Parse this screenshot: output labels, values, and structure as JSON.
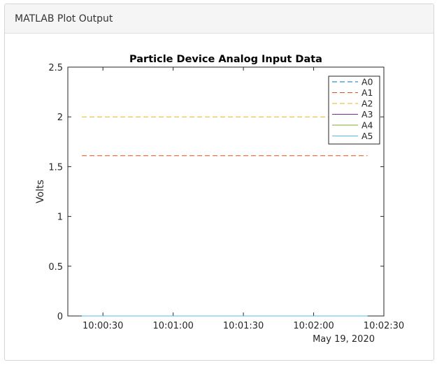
{
  "panel": {
    "title": "MATLAB Plot Output"
  },
  "chart_data": {
    "type": "line",
    "title": "Particle Device Analog Input Data",
    "xlabel": "",
    "ylabel": "Volts",
    "x": [
      "10:00:21",
      "10:02:23"
    ],
    "x_date_label": "May 19, 2020",
    "xticks": [
      "10:00:30",
      "10:01:00",
      "10:01:30",
      "10:02:00",
      "10:02:30"
    ],
    "xlim": [
      "10:00:15",
      "10:02:30"
    ],
    "ylim": [
      0,
      2.5
    ],
    "yticks": [
      "0",
      "0.5",
      "1",
      "1.5",
      "2",
      "2.5"
    ],
    "grid": false,
    "legend_position": "top-right",
    "series": [
      {
        "name": "A0",
        "values": [
          0,
          0
        ],
        "color": "#0072BD",
        "dash": true
      },
      {
        "name": "A1",
        "values": [
          1.61,
          1.61
        ],
        "color": "#D95319",
        "dash": true
      },
      {
        "name": "A2",
        "values": [
          2.0,
          2.0
        ],
        "color": "#EDB120",
        "dash": true
      },
      {
        "name": "A3",
        "values": [
          0,
          0
        ],
        "color": "#7E2F8E",
        "dash": false
      },
      {
        "name": "A4",
        "values": [
          0,
          0
        ],
        "color": "#77AC30",
        "dash": false
      },
      {
        "name": "A5",
        "values": [
          0,
          0
        ],
        "color": "#4DBEEE",
        "dash": false
      }
    ]
  }
}
